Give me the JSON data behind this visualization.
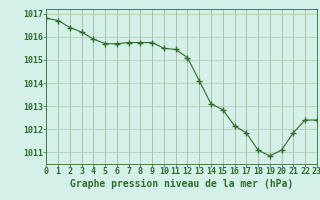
{
  "x": [
    0,
    1,
    2,
    3,
    4,
    5,
    6,
    7,
    8,
    9,
    10,
    11,
    12,
    13,
    14,
    15,
    16,
    17,
    18,
    19,
    20,
    21,
    22,
    23
  ],
  "y": [
    1016.8,
    1016.7,
    1016.4,
    1016.2,
    1015.9,
    1015.7,
    1015.7,
    1015.75,
    1015.75,
    1015.75,
    1015.5,
    1015.45,
    1015.1,
    1014.1,
    1013.1,
    1012.85,
    1012.15,
    1011.85,
    1011.1,
    1010.85,
    1011.1,
    1011.85,
    1012.4,
    1012.4
  ],
  "xlabel": "Graphe pression niveau de la mer (hPa)",
  "xlim": [
    0,
    23
  ],
  "ylim": [
    1010.5,
    1017.2
  ],
  "yticks": [
    1011,
    1012,
    1013,
    1014,
    1015,
    1016,
    1017
  ],
  "xticks": [
    0,
    1,
    2,
    3,
    4,
    5,
    6,
    7,
    8,
    9,
    10,
    11,
    12,
    13,
    14,
    15,
    16,
    17,
    18,
    19,
    20,
    21,
    22,
    23
  ],
  "line_color": "#2d6e2d",
  "marker_color": "#2d6e2d",
  "bg_color": "#d5f0e8",
  "grid_color": "#a8c8a8",
  "label_color": "#2d6e2d",
  "tick_color": "#2d6e2d",
  "xlabel_fontsize": 7.0,
  "tick_fontsize": 6.0
}
